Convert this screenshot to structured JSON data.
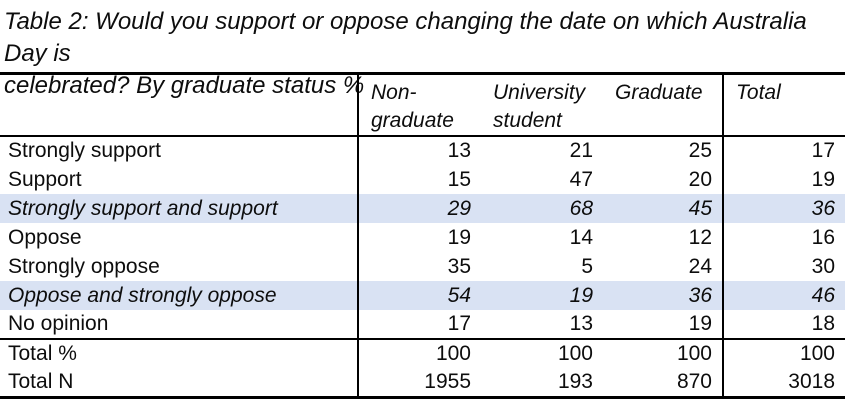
{
  "caption": {
    "line1": "Table 2: Would you support or oppose changing the date on which Australia Day is",
    "line2": "celebrated? By graduate status %",
    "full_text": "Table 2: Would you support or oppose changing the date on which Australia Day is celebrated? By graduate status %"
  },
  "table": {
    "columns": [
      "",
      "Non-graduate",
      "University student",
      "Graduate",
      "Total"
    ],
    "rows": [
      {
        "label": "Strongly support",
        "values": [
          13,
          21,
          25,
          17
        ],
        "emphasized": false
      },
      {
        "label": "Support",
        "values": [
          15,
          47,
          20,
          19
        ],
        "emphasized": false
      },
      {
        "label": "Strongly support and support",
        "values": [
          29,
          68,
          45,
          36
        ],
        "emphasized": true
      },
      {
        "label": "Oppose",
        "values": [
          19,
          14,
          12,
          16
        ],
        "emphasized": false
      },
      {
        "label": "Strongly oppose",
        "values": [
          35,
          5,
          24,
          30
        ],
        "emphasized": false
      },
      {
        "label": "Oppose and strongly oppose",
        "values": [
          54,
          19,
          36,
          46
        ],
        "emphasized": true
      },
      {
        "label": "No opinion",
        "values": [
          17,
          13,
          19,
          18
        ],
        "emphasized": false
      }
    ],
    "footer_rows": [
      {
        "label": "Total %",
        "values": [
          100,
          100,
          100,
          100
        ]
      },
      {
        "label": "Total N",
        "values": [
          1955,
          193,
          870,
          3018
        ]
      }
    ],
    "highlight_color": "#d9e2f3",
    "border_color": "#000000"
  },
  "chart_data": {
    "type": "table",
    "title": "Table 2: Would you support or oppose changing the date on which Australia Day is celebrated? By graduate status %",
    "categories": [
      "Non-graduate",
      "University student",
      "Graduate",
      "Total"
    ],
    "series": [
      {
        "name": "Strongly support",
        "values": [
          13,
          21,
          25,
          17
        ]
      },
      {
        "name": "Support",
        "values": [
          15,
          47,
          20,
          19
        ]
      },
      {
        "name": "Strongly support and support",
        "values": [
          29,
          68,
          45,
          36
        ]
      },
      {
        "name": "Oppose",
        "values": [
          19,
          14,
          12,
          16
        ]
      },
      {
        "name": "Strongly oppose",
        "values": [
          35,
          5,
          24,
          30
        ]
      },
      {
        "name": "Oppose and strongly oppose",
        "values": [
          54,
          19,
          36,
          46
        ]
      },
      {
        "name": "No opinion",
        "values": [
          17,
          13,
          19,
          18
        ]
      },
      {
        "name": "Total %",
        "values": [
          100,
          100,
          100,
          100
        ]
      },
      {
        "name": "Total N",
        "values": [
          1955,
          193,
          870,
          3018
        ]
      }
    ]
  }
}
